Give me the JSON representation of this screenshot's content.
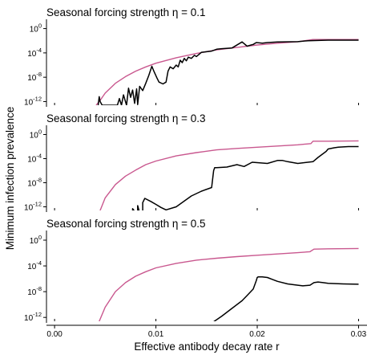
{
  "figure": {
    "xlabel": "Effective antibody decay rate r",
    "ylabel": "Minimum infection prevalence",
    "x_ticks": [
      "0.00",
      "0.01",
      "0.02",
      "0.03"
    ],
    "y_ticks": [
      "10^0",
      "10^-4",
      "10^-8",
      "10^-12"
    ],
    "panel_titles": [
      "Seasonal forcing strength η = 0.1",
      "Seasonal forcing strength η = 0.3",
      "Seasonal forcing strength η = 0.5"
    ]
  },
  "colors": {
    "black_series": "#000000",
    "pink_series": "#c9588f"
  },
  "chart_data": [
    {
      "type": "line",
      "title": "Seasonal forcing strength η = 0.1",
      "xlabel": "Effective antibody decay rate r",
      "ylabel": "Minimum infection prevalence",
      "xlim": [
        -0.0008,
        0.0302
      ],
      "ylim": [
        -12.6,
        1.0
      ],
      "y_scale": "log10",
      "series": [
        {
          "color": "#c9588f",
          "x": [
            0.0041,
            0.0045,
            0.005,
            0.006,
            0.007,
            0.008,
            0.009,
            0.01,
            0.012,
            0.014,
            0.016,
            0.018,
            0.02,
            0.022,
            0.024,
            0.0255,
            0.027,
            0.03
          ],
          "log10_y": [
            -12.6,
            -11.8,
            -10.6,
            -9.0,
            -7.9,
            -7.0,
            -6.3,
            -5.7,
            -4.8,
            -4.1,
            -3.5,
            -3.1,
            -2.7,
            -2.4,
            -2.15,
            -1.8,
            -1.8,
            -1.8
          ]
        },
        {
          "color": "#000000",
          "x": [
            0.0043,
            0.0044,
            0.0045,
            0.0047,
            0.0048,
            0.005,
            0.0051,
            0.0055,
            0.0058,
            0.006,
            0.0062,
            0.0064,
            0.0066,
            0.0068,
            0.0071,
            0.0073,
            0.0075,
            0.0077,
            0.0079,
            0.0081,
            0.0082,
            0.0084,
            0.0087,
            0.009,
            0.0093,
            0.0096,
            0.0098,
            0.0101,
            0.0103,
            0.0107,
            0.011,
            0.0112,
            0.0114,
            0.0117,
            0.012,
            0.0122,
            0.0124,
            0.0126,
            0.0128,
            0.013,
            0.0132,
            0.0135,
            0.0138,
            0.014,
            0.0145,
            0.015,
            0.0155,
            0.016,
            0.0165,
            0.0175,
            0.0185,
            0.019,
            0.0194,
            0.0196,
            0.0199,
            0.0205,
            0.021,
            0.022,
            0.024,
            0.025,
            0.027,
            0.03
          ],
          "log10_y": [
            -12.6,
            -11.2,
            -12.0,
            -12.6,
            -12.6,
            -12.6,
            -12.6,
            -12.6,
            -12.6,
            -12.6,
            -12.6,
            -11.5,
            -12.6,
            -10.9,
            -12.6,
            -9.8,
            -11.3,
            -10.1,
            -12.3,
            -9.9,
            -12.5,
            -9.5,
            -10.2,
            -9.0,
            -7.7,
            -6.2,
            -7.0,
            -8.1,
            -8.8,
            -9.1,
            -8.8,
            -7.0,
            -6.3,
            -6.6,
            -6.0,
            -6.3,
            -5.2,
            -5.6,
            -4.9,
            -5.3,
            -4.7,
            -4.9,
            -4.4,
            -4.6,
            -3.9,
            -3.8,
            -3.7,
            -3.4,
            -3.3,
            -3.2,
            -2.2,
            -2.9,
            -2.7,
            -2.6,
            -2.3,
            -2.4,
            -2.3,
            -2.2,
            -2.15,
            -2.0,
            -1.9,
            -1.9
          ]
        }
      ]
    },
    {
      "type": "line",
      "title": "Seasonal forcing strength η = 0.3",
      "xlabel": "Effective antibody decay rate r",
      "ylabel": "Minimum infection prevalence",
      "xlim": [
        -0.0008,
        0.0302
      ],
      "ylim": [
        -12.6,
        1.0
      ],
      "y_scale": "log10",
      "series": [
        {
          "color": "#c9588f",
          "x": [
            0.0044,
            0.005,
            0.006,
            0.007,
            0.008,
            0.009,
            0.01,
            0.012,
            0.014,
            0.016,
            0.018,
            0.02,
            0.022,
            0.024,
            0.0253,
            0.0255,
            0.027,
            0.03
          ],
          "log10_y": [
            -13.0,
            -10.5,
            -8.3,
            -6.9,
            -5.9,
            -5.0,
            -4.4,
            -3.55,
            -3.0,
            -2.55,
            -2.3,
            -2.1,
            -1.9,
            -1.7,
            -1.5,
            -1.1,
            -1.1,
            -1.05
          ]
        },
        {
          "color": "#000000",
          "x": [
            0.0075,
            0.0077,
            0.0077,
            0.008,
            0.0082,
            0.0082,
            0.0084,
            0.0087,
            0.0087,
            0.0089,
            0.0095,
            0.01,
            0.0105,
            0.011,
            0.012,
            0.0135,
            0.0145,
            0.0155,
            0.0157,
            0.0158,
            0.016,
            0.017,
            0.018,
            0.0187,
            0.0195,
            0.021,
            0.022,
            0.0225,
            0.023,
            0.024,
            0.0255,
            0.026,
            0.0268,
            0.027,
            0.0276,
            0.028,
            0.029,
            0.03
          ],
          "log10_y": [
            -13.0,
            -13.0,
            -12.3,
            -13.0,
            -13.0,
            -11.8,
            -13.0,
            -13.0,
            -11.3,
            -10.6,
            -11.1,
            -11.6,
            -12.1,
            -12.5,
            -12.0,
            -10.2,
            -9.4,
            -8.8,
            -6.0,
            -5.5,
            -5.5,
            -5.4,
            -5.0,
            -5.3,
            -4.6,
            -4.8,
            -4.3,
            -4.3,
            -4.5,
            -4.8,
            -4.5,
            -3.8,
            -2.8,
            -2.4,
            -2.2,
            -2.1,
            -2.0,
            -2.0
          ]
        }
      ]
    },
    {
      "type": "line",
      "title": "Seasonal forcing strength η = 0.5",
      "xlabel": "Effective antibody decay rate r",
      "ylabel": "Minimum infection prevalence",
      "xlim": [
        -0.0008,
        0.0302
      ],
      "ylim": [
        -12.6,
        1.0
      ],
      "y_scale": "log10",
      "series": [
        {
          "color": "#c9588f",
          "x": [
            0.0043,
            0.005,
            0.006,
            0.007,
            0.008,
            0.009,
            0.01,
            0.012,
            0.014,
            0.016,
            0.018,
            0.02,
            0.022,
            0.024,
            0.0252,
            0.0256,
            0.027,
            0.03
          ],
          "log10_y": [
            -13.0,
            -10.4,
            -8.0,
            -6.6,
            -5.6,
            -4.9,
            -4.3,
            -3.6,
            -3.1,
            -2.8,
            -2.55,
            -2.35,
            -2.15,
            -1.95,
            -1.8,
            -1.4,
            -1.35,
            -1.3
          ]
        },
        {
          "color": "#000000",
          "x": [
            0.0154,
            0.0165,
            0.0175,
            0.0185,
            0.019,
            0.0196,
            0.0199,
            0.02,
            0.0201,
            0.0205,
            0.021,
            0.0215,
            0.022,
            0.023,
            0.024,
            0.0245,
            0.0252,
            0.0256,
            0.026,
            0.0265,
            0.027,
            0.0285,
            0.03
          ],
          "log10_y": [
            -13.0,
            -11.8,
            -10.6,
            -9.4,
            -8.6,
            -7.6,
            -6.3,
            -5.8,
            -5.7,
            -5.7,
            -5.8,
            -6.1,
            -6.4,
            -6.8,
            -7.0,
            -7.1,
            -7.0,
            -6.6,
            -6.5,
            -6.6,
            -6.7,
            -6.8,
            -6.85
          ]
        }
      ]
    }
  ]
}
